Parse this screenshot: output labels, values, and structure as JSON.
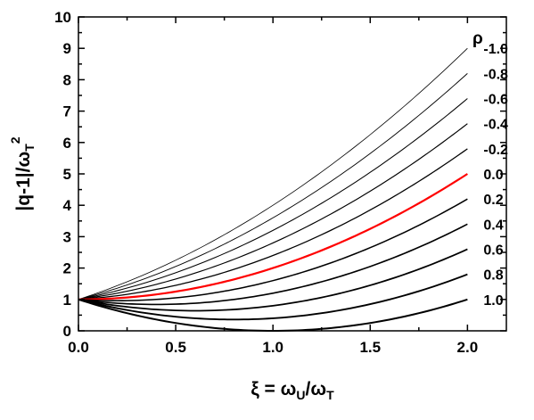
{
  "chart_data": {
    "type": "line",
    "title": "",
    "xlabel": "ξ = ωU/ωT",
    "ylabel": "|q-1|/ωT²",
    "xlim": [
      0.0,
      2.2
    ],
    "ylim": [
      0,
      10
    ],
    "x_ticks": [
      "0.0",
      "0.5",
      "1.0",
      "1.5",
      "2.0"
    ],
    "y_ticks": [
      "0",
      "1",
      "2",
      "3",
      "4",
      "5",
      "6",
      "7",
      "8",
      "9",
      "10"
    ],
    "grid": false,
    "legend_title": "ρ",
    "highlight_color": "#ff0000",
    "line_color": "#000000",
    "x": [
      0.0,
      0.25,
      0.5,
      0.75,
      1.0,
      1.25,
      1.5,
      1.75,
      2.0
    ],
    "series": [
      {
        "name": "-1.0",
        "values": [
          1.0,
          1.5625,
          2.25,
          3.0625,
          4.0,
          5.0625,
          6.25,
          7.5625,
          9.0
        ]
      },
      {
        "name": "-0.8",
        "values": [
          1.0,
          1.4625,
          2.05,
          2.7625,
          3.6,
          4.5625,
          5.65,
          6.8625,
          8.2
        ]
      },
      {
        "name": "-0.6",
        "values": [
          1.0,
          1.3625,
          1.85,
          2.4625,
          3.2,
          4.0625,
          5.05,
          6.1625,
          7.4
        ]
      },
      {
        "name": "-0.4",
        "values": [
          1.0,
          1.2625,
          1.65,
          2.1625,
          2.8,
          3.5625,
          4.45,
          5.4625,
          6.6
        ]
      },
      {
        "name": "-0.2",
        "values": [
          1.0,
          1.1625,
          1.45,
          1.8625,
          2.4,
          3.0625,
          3.85,
          4.7625,
          5.8
        ]
      },
      {
        "name": "0.0",
        "values": [
          1.0,
          1.0625,
          1.25,
          1.5625,
          2.0,
          2.5625,
          3.25,
          4.0625,
          5.0
        ],
        "highlight": true
      },
      {
        "name": "0.2",
        "values": [
          1.0,
          0.9625,
          1.05,
          1.2625,
          1.6,
          2.0625,
          2.65,
          3.3625,
          4.2
        ]
      },
      {
        "name": "0.4",
        "values": [
          1.0,
          0.8625,
          0.85,
          0.9625,
          1.2,
          1.5625,
          2.05,
          2.6625,
          3.4
        ]
      },
      {
        "name": "0.6",
        "values": [
          1.0,
          0.7625,
          0.65,
          0.6625,
          0.8,
          1.0625,
          1.45,
          1.9625,
          2.6
        ]
      },
      {
        "name": "0.8",
        "values": [
          1.0,
          0.6625,
          0.45,
          0.3625,
          0.4,
          0.5625,
          0.85,
          1.2625,
          1.8
        ]
      },
      {
        "name": "1.0",
        "values": [
          1.0,
          0.5625,
          0.25,
          0.0625,
          0.0,
          0.0625,
          0.25,
          0.5625,
          1.0
        ]
      }
    ]
  }
}
